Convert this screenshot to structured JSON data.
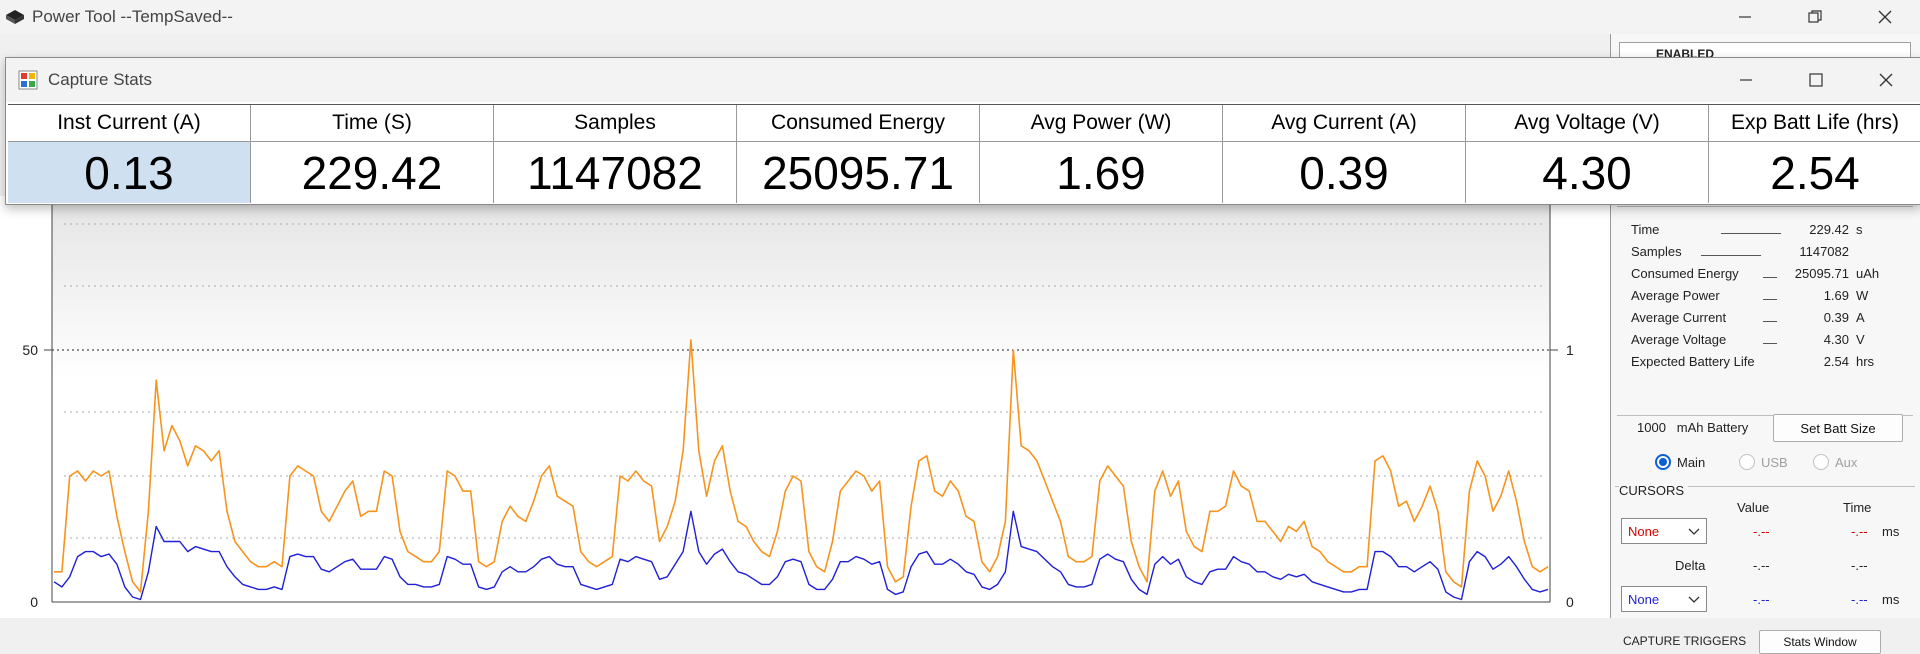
{
  "app": {
    "title": "Power Tool --TempSaved--"
  },
  "stats_window": {
    "title": "Capture Stats",
    "columns": [
      {
        "header": "Inst Current (A)",
        "value": "0.13"
      },
      {
        "header": "Time (S)",
        "value": "229.42"
      },
      {
        "header": "Samples",
        "value": "1147082"
      },
      {
        "header": "Consumed Energy",
        "value": "25095.71"
      },
      {
        "header": "Avg Power (W)",
        "value": "1.69"
      },
      {
        "header": "Avg Current (A)",
        "value": "0.39"
      },
      {
        "header": "Avg Voltage (V)",
        "value": "4.30"
      },
      {
        "header": "Exp Batt Life (hrs)",
        "value": "2.54"
      }
    ]
  },
  "side_panel": {
    "top_strip_text": "ENABLED",
    "stats": [
      {
        "label": "Time",
        "value": "229.42",
        "unit": "s"
      },
      {
        "label": "Samples",
        "value": "1147082",
        "unit": ""
      },
      {
        "label": "Consumed Energy",
        "value": "25095.71",
        "unit": "uAh"
      },
      {
        "label": "Average Power",
        "value": "1.69",
        "unit": "W"
      },
      {
        "label": "Average Current",
        "value": "0.39",
        "unit": "A"
      },
      {
        "label": "Average Voltage",
        "value": "4.30",
        "unit": "V"
      },
      {
        "label": "Expected Battery Life",
        "value": "2.54",
        "unit": "hrs"
      }
    ],
    "battery": {
      "capacity": "1000",
      "unit_label": "mAh Battery",
      "button": "Set Batt Size"
    },
    "channels": [
      {
        "label": "Main",
        "selected": true,
        "enabled": true
      },
      {
        "label": "USB",
        "selected": false,
        "enabled": false
      },
      {
        "label": "Aux",
        "selected": false,
        "enabled": false
      }
    ],
    "cursors": {
      "title": "CURSORS",
      "col_value": "Value",
      "col_time": "Time",
      "cursor1": {
        "select": "None",
        "value": "-.--",
        "time": "-.--",
        "unit": "ms"
      },
      "delta": {
        "label": "Delta",
        "value": "-.--",
        "time": "-.--"
      },
      "cursor2": {
        "select": "None",
        "value": "-.--",
        "time": "-.--",
        "unit": "ms"
      }
    },
    "triggers": {
      "title": "CAPTURE TRIGGERS",
      "button": "Stats Window"
    }
  },
  "chart_data": {
    "type": "line",
    "left_axis_ticks": [
      "0",
      "50"
    ],
    "right_axis_ticks": [
      "0",
      "1"
    ],
    "ylim_left": [
      0,
      50
    ],
    "series": [
      {
        "color": "#f7941d",
        "values": [
          6,
          6,
          25,
          26,
          24,
          26,
          25,
          26,
          17,
          10,
          4,
          2,
          18,
          44,
          30,
          35,
          32,
          27,
          31,
          30,
          28,
          30,
          18,
          12,
          10,
          8,
          7,
          7,
          8,
          7,
          25,
          27,
          26,
          25,
          18,
          16,
          19,
          22,
          24,
          17,
          18,
          18,
          26,
          25,
          14,
          10,
          9,
          8,
          8,
          10,
          26,
          25,
          22,
          22,
          8,
          7,
          8,
          16,
          19,
          17,
          16,
          20,
          25,
          27,
          21,
          20,
          19,
          10,
          8,
          7,
          8,
          9,
          25,
          24,
          26,
          24,
          23,
          12,
          15,
          20,
          30,
          52,
          30,
          21,
          28,
          31,
          22,
          16,
          15,
          12,
          10,
          9,
          14,
          22,
          25,
          24,
          10,
          7,
          6,
          12,
          22,
          24,
          26,
          25,
          22,
          24,
          7,
          4,
          5,
          19,
          28,
          29,
          22,
          21,
          24,
          22,
          17,
          16,
          8,
          6,
          9,
          16,
          50,
          31,
          30,
          28,
          24,
          20,
          16,
          9,
          8,
          8,
          9,
          24,
          27,
          25,
          23,
          12,
          7,
          4,
          22,
          26,
          21,
          24,
          14,
          11,
          10,
          18,
          18,
          19,
          26,
          23,
          22,
          16,
          16,
          14,
          12,
          15,
          14,
          16,
          11,
          10,
          8,
          7,
          6,
          6,
          7,
          7,
          28,
          29,
          26,
          19,
          20,
          16,
          19,
          23,
          18,
          6,
          4,
          3,
          22,
          28,
          25,
          18,
          21,
          26,
          20,
          12,
          7,
          6,
          7
        ]
      },
      {
        "color": "#1f1fd6",
        "values": [
          0.08,
          0.06,
          0.1,
          0.18,
          0.2,
          0.2,
          0.18,
          0.19,
          0.15,
          0.06,
          0.02,
          0.01,
          0.12,
          0.3,
          0.24,
          0.24,
          0.24,
          0.2,
          0.22,
          0.21,
          0.2,
          0.2,
          0.14,
          0.1,
          0.07,
          0.06,
          0.05,
          0.05,
          0.06,
          0.05,
          0.18,
          0.19,
          0.18,
          0.18,
          0.13,
          0.12,
          0.14,
          0.16,
          0.17,
          0.13,
          0.13,
          0.13,
          0.18,
          0.17,
          0.1,
          0.07,
          0.07,
          0.06,
          0.06,
          0.07,
          0.18,
          0.17,
          0.15,
          0.15,
          0.06,
          0.05,
          0.06,
          0.12,
          0.14,
          0.12,
          0.12,
          0.14,
          0.17,
          0.18,
          0.15,
          0.14,
          0.14,
          0.07,
          0.06,
          0.05,
          0.06,
          0.07,
          0.17,
          0.16,
          0.18,
          0.17,
          0.16,
          0.09,
          0.1,
          0.15,
          0.2,
          0.36,
          0.2,
          0.15,
          0.19,
          0.21,
          0.16,
          0.12,
          0.11,
          0.09,
          0.07,
          0.07,
          0.1,
          0.16,
          0.17,
          0.16,
          0.07,
          0.05,
          0.05,
          0.09,
          0.16,
          0.16,
          0.18,
          0.17,
          0.15,
          0.16,
          0.05,
          0.03,
          0.04,
          0.14,
          0.19,
          0.2,
          0.15,
          0.15,
          0.17,
          0.15,
          0.12,
          0.11,
          0.06,
          0.05,
          0.07,
          0.12,
          0.36,
          0.22,
          0.21,
          0.2,
          0.17,
          0.14,
          0.12,
          0.07,
          0.06,
          0.06,
          0.07,
          0.17,
          0.19,
          0.17,
          0.16,
          0.09,
          0.05,
          0.03,
          0.15,
          0.18,
          0.15,
          0.17,
          0.1,
          0.08,
          0.07,
          0.12,
          0.13,
          0.13,
          0.18,
          0.16,
          0.15,
          0.12,
          0.12,
          0.1,
          0.09,
          0.11,
          0.1,
          0.11,
          0.08,
          0.07,
          0.06,
          0.05,
          0.04,
          0.04,
          0.05,
          0.05,
          0.2,
          0.2,
          0.18,
          0.14,
          0.14,
          0.12,
          0.14,
          0.16,
          0.13,
          0.04,
          0.02,
          0.01,
          0.16,
          0.2,
          0.18,
          0.13,
          0.15,
          0.18,
          0.14,
          0.09,
          0.05,
          0.04,
          0.05
        ]
      }
    ]
  }
}
